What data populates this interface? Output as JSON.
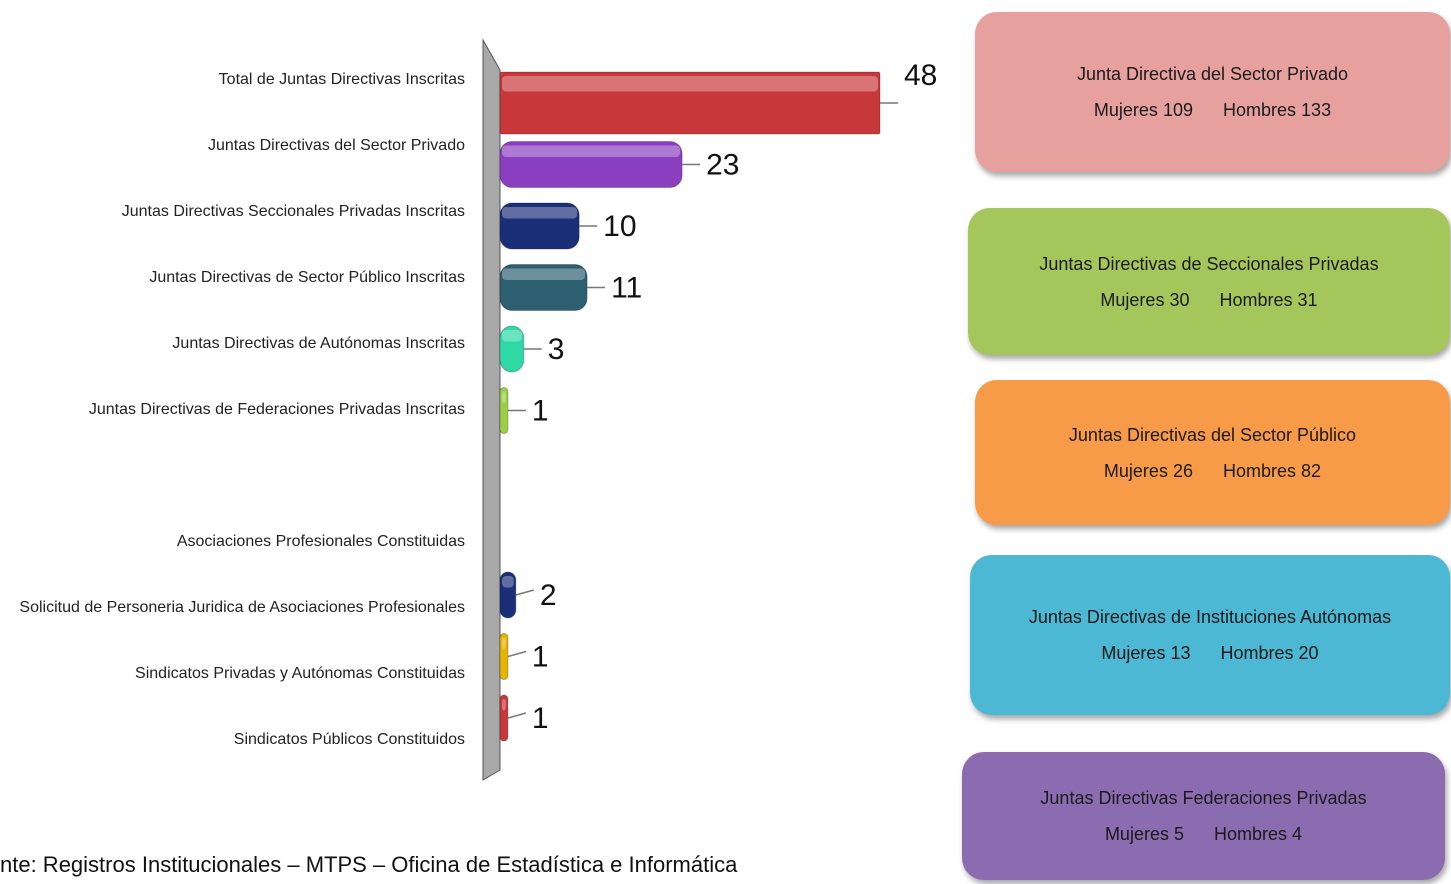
{
  "chart_data": {
    "type": "bar",
    "categories": [
      "Total de Juntas Directivas Inscritas",
      "Juntas Directivas del Sector Privado",
      "Juntas Directivas Seccionales Privadas Inscritas",
      "Juntas Directivas de Sector Público Inscritas",
      "Juntas Directivas de Autónomas Inscritas",
      "Juntas Directivas de Federaciones Privadas Inscritas",
      null,
      "Asociaciones Profesionales Constituidas",
      "Solicitud de Personeria Juridica de Asociaciones Profesionales",
      "Sindicatos Privadas y Autónomas Constituidas",
      "Sindicatos Públicos Constituidos"
    ],
    "values": [
      48,
      23,
      10,
      11,
      3,
      1,
      null,
      null,
      2,
      1,
      1
    ],
    "colors": [
      "#c8383a",
      "#8a3fc0",
      "#1a2f78",
      "#2c5f70",
      "#2fd9a6",
      "#9bcf45",
      null,
      null,
      "#1a2f78",
      "#e6b400",
      "#c8383a"
    ]
  },
  "boxes": [
    {
      "title": "Junta Directiva del Sector Privado",
      "women_label": "Mujeres",
      "women": 109,
      "men_label": "Hombres",
      "men": 133,
      "color": "#e6a19f"
    },
    {
      "title": "Juntas Directivas de Seccionales Privadas",
      "women_label": "Mujeres",
      "women": 30,
      "men_label": "Hombres",
      "men": 31,
      "color": "#a5c65a"
    },
    {
      "title": "Juntas Directivas del Sector Público",
      "women_label": "Mujeres",
      "women": 26,
      "men_label": "Hombres",
      "men": 82,
      "color": "#f79b48"
    },
    {
      "title": "Juntas Directivas de Instituciones Autónomas",
      "women_label": "Mujeres",
      "women": 13,
      "men_label": "Hombres",
      "men": 20,
      "color": "#4db8d4"
    },
    {
      "title": "Juntas Directivas Federaciones Privadas",
      "women_label": "Mujeres",
      "women": 5,
      "men_label": "Hombres",
      "men": 4,
      "color": "#8c6cb1"
    }
  ],
  "footer": "nte: Registros Institucionales – MTPS – Oficina de Estadística e Informática"
}
